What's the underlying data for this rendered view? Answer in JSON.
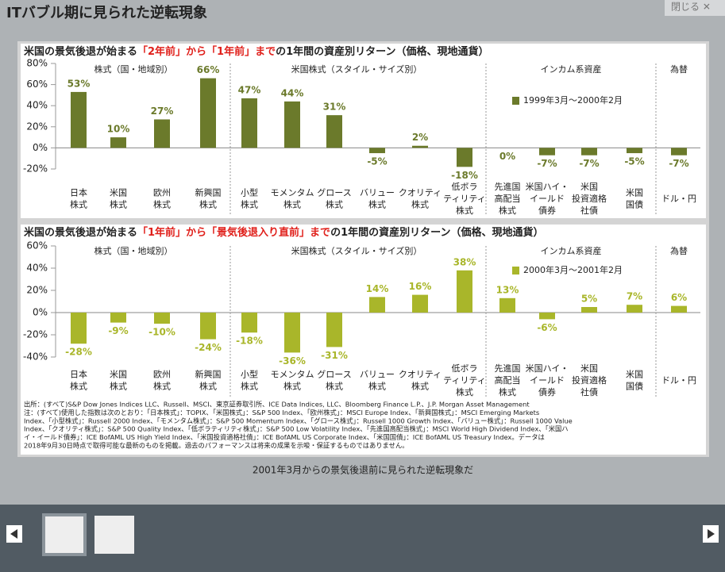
{
  "header": {
    "title": "ITバブル期に見られた逆転現象",
    "close": "閉じる ✕"
  },
  "chart_data": [
    {
      "type": "bar",
      "title_parts": [
        "米国の景気後退が始まる",
        "「2年前」から「1年前」まで",
        "の1年間の資産別リターン（価格、現地通貨）"
      ],
      "group_labels": [
        "株式（国・地域別）",
        "米国株式（スタイル・サイズ別）",
        "インカム系資産",
        "為替"
      ],
      "categories": [
        [
          "日本",
          "株式"
        ],
        [
          "米国",
          "株式"
        ],
        [
          "欧州",
          "株式"
        ],
        [
          "新興国",
          "株式"
        ],
        [
          "小型",
          "株式"
        ],
        [
          "モメンタム",
          "株式"
        ],
        [
          "グロース",
          "株式"
        ],
        [
          "バリュー",
          "株式"
        ],
        [
          "クオリティ",
          "株式"
        ],
        [
          "低ボラ",
          "ティリティ",
          "株式"
        ],
        [
          "先進国",
          "高配当",
          "株式"
        ],
        [
          "米国ハイ・",
          "イールド",
          "債券"
        ],
        [
          "米国",
          "投資適格",
          "社債"
        ],
        [
          "米国",
          "国債"
        ],
        [
          "ドル・円"
        ]
      ],
      "series": [
        {
          "name": "1999年3月～2000年2月",
          "color": "#6b7a2b",
          "values": [
            53,
            10,
            27,
            66,
            47,
            44,
            31,
            -5,
            2,
            -18,
            0,
            -7,
            -7,
            -5,
            -7
          ],
          "value_labels": [
            "53%",
            "10%",
            "27%",
            "66%",
            "47%",
            "44%",
            "31%",
            "-5%",
            "2%",
            "-18%",
            "0%",
            "-7%",
            "-7%",
            "-5%",
            "-7%"
          ]
        }
      ],
      "ylim": [
        -20,
        80
      ],
      "yticks": [
        {
          "value": -20,
          "label": "-20%"
        },
        {
          "value": 0,
          "label": "0%"
        },
        {
          "value": 20,
          "label": "20%"
        },
        {
          "value": 40,
          "label": "40%"
        },
        {
          "value": 60,
          "label": "60%"
        },
        {
          "value": 80,
          "label": "80%"
        }
      ]
    },
    {
      "type": "bar",
      "title_parts": [
        "米国の景気後退が始まる",
        "「1年前」から「景気後退入り直前」まで",
        "の1年間の資産別リターン（価格、現地通貨）"
      ],
      "group_labels": [
        "株式（国・地域別）",
        "米国株式（スタイル・サイズ別）",
        "インカム系資産",
        "為替"
      ],
      "categories": [
        [
          "日本",
          "株式"
        ],
        [
          "米国",
          "株式"
        ],
        [
          "欧州",
          "株式"
        ],
        [
          "新興国",
          "株式"
        ],
        [
          "小型",
          "株式"
        ],
        [
          "モメンタム",
          "株式"
        ],
        [
          "グロース",
          "株式"
        ],
        [
          "バリュー",
          "株式"
        ],
        [
          "クオリティ",
          "株式"
        ],
        [
          "低ボラ",
          "ティリティ",
          "株式"
        ],
        [
          "先進国",
          "高配当",
          "株式"
        ],
        [
          "米国ハイ・",
          "イールド",
          "債券"
        ],
        [
          "米国",
          "投資適格",
          "社債"
        ],
        [
          "米国",
          "国債"
        ],
        [
          "ドル・円"
        ]
      ],
      "series": [
        {
          "name": "2000年3月～2001年2月",
          "color": "#a9b62a",
          "values": [
            -28,
            -9,
            -10,
            -24,
            -18,
            -36,
            -31,
            14,
            16,
            38,
            13,
            -6,
            5,
            7,
            6
          ],
          "value_labels": [
            "-28%",
            "-9%",
            "-10%",
            "-24%",
            "-18%",
            "-36%",
            "-31%",
            "14%",
            "16%",
            "38%",
            "13%",
            "-6%",
            "5%",
            "7%",
            "6%"
          ]
        }
      ],
      "ylim": [
        -40,
        60
      ],
      "yticks": [
        {
          "value": -40,
          "label": "-40%"
        },
        {
          "value": -20,
          "label": "-20%"
        },
        {
          "value": 0,
          "label": "0%"
        },
        {
          "value": 20,
          "label": "20%"
        },
        {
          "value": 40,
          "label": "40%"
        },
        {
          "value": 60,
          "label": "60%"
        }
      ]
    }
  ],
  "notes": [
    "出所：(すべて)S&P Dow Jones Indices LLC、Russell、MSCI、東京証券取引所、ICE Data Indices, LLC、Bloomberg Finance L.P.、J.P. Morgan Asset Management",
    "注：(すべて)使用した指数は次のとおり：「日本株式」：TOPIX、「米国株式」：S&P 500 Index、「欧州株式」：MSCI Europe Index、「新興国株式」：MSCI Emerging Markets",
    "Index、「小型株式」：Russell 2000 Index、「モメンタム株式」：S&P 500 Momentum Index、「グロース株式」：Russell 1000 Growth Index、「バリュー株式」：Russell 1000 Value",
    "Index、「クオリティ株式」：S&P 500 Quality Index、「低ボラティリティ株式」：S&P 500 Low Volatility Index、「先進国高配当株式」：MSCI World High Dividend Index、「米国ハ",
    "イ・イールド債券」：ICE BofAML US High Yield Index、「米国投資適格社債」：ICE BofAML US Corporate Index、「米国国債」：ICE BofAML US Treasury Index。データは",
    "2018年9月30日時点で取得可能な最新のものを掲載。過去のパフォーマンスは将来の成果を示唆・保証するものではありません。"
  ],
  "caption": "2001年3月からの景気後退前に見られた逆転現象だ"
}
